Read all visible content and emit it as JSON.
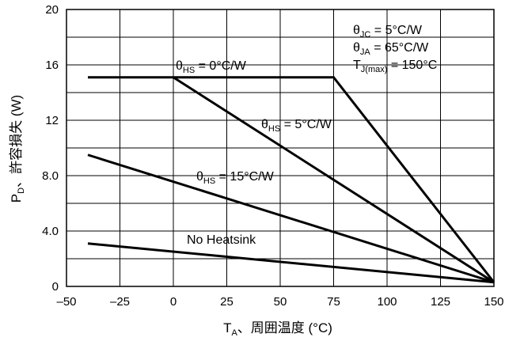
{
  "chart_data": {
    "type": "line",
    "xlabel": "T_A、周囲温度 (°C)",
    "xlabel_main": "T",
    "xlabel_sub": "A",
    "xlabel_rest": "、周囲温度 (°C)",
    "ylabel": "P_D、許容損失 (W)",
    "ylabel_main": "P",
    "ylabel_sub": "D",
    "ylabel_rest": "、許容損失 (W)",
    "xlim": [
      -50,
      150
    ],
    "ylim": [
      0,
      20
    ],
    "x_ticks": [
      -50,
      -25,
      0,
      25,
      50,
      75,
      100,
      125,
      150
    ],
    "x_tick_labels": [
      "–50",
      "–25",
      "0",
      "25",
      "50",
      "75",
      "100",
      "125",
      "150"
    ],
    "y_ticks": [
      0,
      4,
      8,
      12,
      16,
      20
    ],
    "y_tick_labels": [
      "0",
      "4.0",
      "8.0",
      "12",
      "16",
      "20"
    ],
    "grid": true,
    "series": [
      {
        "name": "θHS = 0°C/W",
        "label_main": "θ",
        "label_sub": "HS",
        "label_rest": " = 0°C/W",
        "x": [
          -40,
          75,
          150
        ],
        "y": [
          15.1,
          15.1,
          0.3
        ]
      },
      {
        "name": "θHS = 5°C/W",
        "label_main": "θ",
        "label_sub": "HS",
        "label_rest": " = 5°C/W",
        "x": [
          0,
          150
        ],
        "y": [
          15.1,
          0.3
        ]
      },
      {
        "name": "θHS = 15°C/W",
        "label_main": "θ",
        "label_sub": "HS",
        "label_rest": " = 15°C/W",
        "x": [
          -40,
          150
        ],
        "y": [
          9.5,
          0.3
        ]
      },
      {
        "name": "No Heatsink",
        "label_main": "No Heatsink",
        "label_sub": "",
        "label_rest": "",
        "x": [
          -40,
          150
        ],
        "y": [
          3.1,
          0.3
        ]
      }
    ],
    "annotations": {
      "theta_jc": {
        "main": "θ",
        "sub": "JC",
        "rest": " = 5°C/W"
      },
      "theta_ja": {
        "main": "θ",
        "sub": "JA",
        "rest": " = 65°C/W"
      },
      "tj_max": {
        "main": "T",
        "sub": "J(max)",
        "rest": " = 150°C"
      }
    }
  }
}
